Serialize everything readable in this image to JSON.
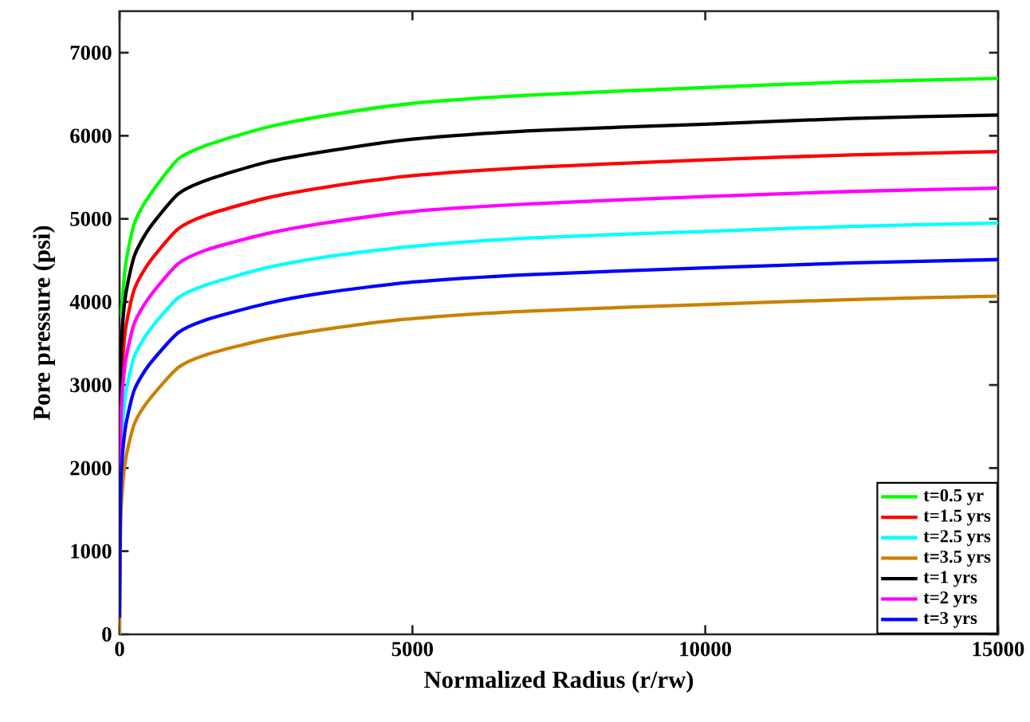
{
  "chart_data": {
    "type": "line",
    "xlabel": "Normalized Radius (r/rw)",
    "ylabel": "Pore pressure (psi)",
    "x": [
      0,
      10,
      30,
      100,
      250,
      500,
      1000,
      1500,
      2500,
      3500,
      5000,
      7000,
      10000,
      12500,
      15000
    ],
    "xlim": [
      0,
      15000
    ],
    "xticks": [
      0,
      5000,
      10000,
      15000
    ],
    "ylim": [
      0,
      7500
    ],
    "yticks": [
      0,
      1000,
      2000,
      3000,
      4000,
      5000,
      6000,
      7000
    ],
    "grid": false,
    "legend": "bottom right",
    "marker": "none",
    "line_style": "solid",
    "series": [
      {
        "name": "t=0.5 yr",
        "color": "#00ff00",
        "values": [
          null,
          null,
          3840,
          4440,
          4940,
          5270,
          5720,
          5890,
          6100,
          6240,
          6390,
          6490,
          6580,
          6650,
          6690
        ]
      },
      {
        "name": "t=1.5 yrs",
        "color": "#ff0000",
        "values": [
          null,
          null,
          3100,
          3670,
          4150,
          4470,
          4880,
          5050,
          5250,
          5380,
          5520,
          5620,
          5710,
          5770,
          5810
        ]
      },
      {
        "name": "t=2.5 yrs",
        "color": "#00ffff",
        "values": [
          null,
          null,
          2330,
          2880,
          3340,
          3650,
          4050,
          4210,
          4410,
          4540,
          4670,
          4770,
          4850,
          4910,
          4950
        ]
      },
      {
        "name": "t=3.5 yrs",
        "color": "#cc8000",
        "values": [
          0,
          990,
          1560,
          2090,
          2530,
          2820,
          3210,
          3370,
          3550,
          3670,
          3800,
          3890,
          3970,
          4030,
          4070
        ]
      },
      {
        "name": "t=1 yrs",
        "color": "#000000",
        "values": [
          1000,
          2860,
          3490,
          4070,
          4550,
          4880,
          5300,
          5470,
          5680,
          5810,
          5960,
          6060,
          6140,
          6210,
          6250
        ]
      },
      {
        "name": "t=2 yrs",
        "color": "#ff00ff",
        "values": [
          600,
          2120,
          2720,
          3280,
          3740,
          4050,
          4460,
          4630,
          4820,
          4950,
          5090,
          5180,
          5270,
          5330,
          5370
        ]
      },
      {
        "name": "t=3 yrs",
        "color": "#0000ff",
        "values": [
          200,
          1360,
          1950,
          2490,
          2940,
          3240,
          3630,
          3790,
          3980,
          4110,
          4240,
          4330,
          4410,
          4470,
          4510
        ]
      }
    ]
  }
}
